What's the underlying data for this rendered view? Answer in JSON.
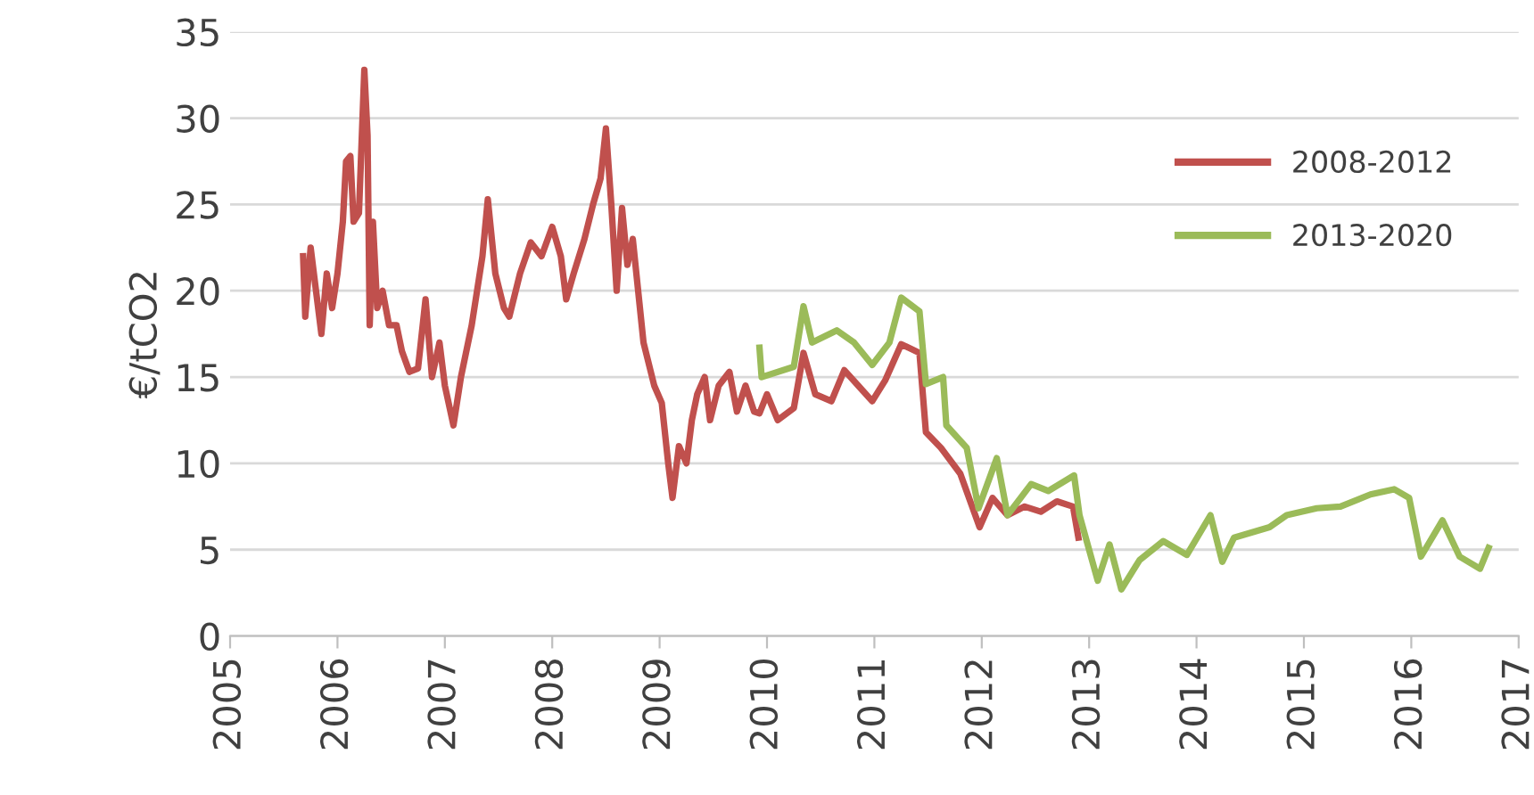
{
  "chart_data": {
    "type": "line",
    "ylabel": "€/tCO2",
    "xlim": [
      2005,
      2017
    ],
    "xticks": [
      2005,
      2006,
      2007,
      2008,
      2009,
      2010,
      2011,
      2012,
      2013,
      2014,
      2015,
      2016,
      2017
    ],
    "ylim": [
      0,
      35
    ],
    "yticks": [
      0,
      5,
      10,
      15,
      20,
      25,
      30,
      35
    ],
    "grid": "y",
    "legend": "right",
    "marker": "none",
    "line_style": "solid",
    "series": [
      {
        "name": "2008-2012",
        "color": "#c0504d",
        "x": [
          2005.68,
          2005.7,
          2005.75,
          2005.8,
          2005.85,
          2005.9,
          2005.95,
          2006.0,
          2006.05,
          2006.08,
          2006.12,
          2006.15,
          2006.2,
          2006.25,
          2006.28,
          2006.3,
          2006.33,
          2006.37,
          2006.42,
          2006.48,
          2006.55,
          2006.6,
          2006.67,
          2006.75,
          2006.82,
          2006.88,
          2006.95,
          2007.0,
          2007.08,
          2007.15,
          2007.25,
          2007.35,
          2007.4,
          2007.47,
          2007.55,
          2007.6,
          2007.7,
          2007.8,
          2007.9,
          2008.0,
          2008.08,
          2008.13,
          2008.2,
          2008.3,
          2008.38,
          2008.45,
          2008.5,
          2008.55,
          2008.6,
          2008.65,
          2008.7,
          2008.75,
          2008.85,
          2008.95,
          2009.02,
          2009.08,
          2009.12,
          2009.18,
          2009.25,
          2009.3,
          2009.35,
          2009.42,
          2009.47,
          2009.55,
          2009.65,
          2009.72,
          2009.8,
          2009.88,
          2009.93,
          2010.0,
          2010.1,
          2010.25,
          2010.34,
          2010.45,
          2010.6,
          2010.72,
          2010.85,
          2010.98,
          2011.1,
          2011.25,
          2011.42,
          2011.48,
          2011.62,
          2011.8,
          2011.98,
          2012.1,
          2012.24,
          2012.4,
          2012.55,
          2012.7,
          2012.85,
          2012.9
        ],
        "values": [
          22,
          18.5,
          22.5,
          20,
          17.5,
          21,
          19,
          21,
          24,
          27.5,
          27.8,
          24,
          24.5,
          32.8,
          29,
          18,
          24,
          19,
          20,
          18,
          18,
          16.5,
          15.3,
          15.5,
          19.5,
          15,
          17,
          14.5,
          12.2,
          15,
          18,
          22,
          25.3,
          21,
          19,
          18.5,
          21,
          22.8,
          22,
          23.7,
          22,
          19.5,
          21,
          23,
          25,
          26.5,
          29.4,
          25,
          20,
          24.8,
          21.5,
          23,
          17,
          14.5,
          13.5,
          10,
          8,
          11,
          10,
          12.5,
          14,
          15,
          12.5,
          14.5,
          15.3,
          13,
          14.5,
          13,
          12.9,
          14,
          12.5,
          13.2,
          16.4,
          14,
          13.6,
          15.4,
          14.5,
          13.6,
          14.8,
          16.9,
          16.4,
          11.8,
          10.9,
          9.4,
          6.3,
          8,
          7,
          7.5,
          7.2,
          7.8,
          7.5,
          5.7
        ]
      },
      {
        "name": "2013-2020",
        "color": "#9bbb59",
        "x": [
          2009.93,
          2009.95,
          2010.25,
          2010.34,
          2010.42,
          2010.65,
          2010.81,
          2010.98,
          2011.14,
          2011.25,
          2011.42,
          2011.48,
          2011.64,
          2011.67,
          2011.86,
          2011.97,
          2012.14,
          2012.24,
          2012.46,
          2012.62,
          2012.86,
          2012.91,
          2013.08,
          2013.19,
          2013.3,
          2013.47,
          2013.69,
          2013.91,
          2014.13,
          2014.24,
          2014.35,
          2014.68,
          2014.84,
          2015.12,
          2015.34,
          2015.62,
          2015.84,
          2015.98,
          2016.09,
          2016.29,
          2016.45,
          2016.64,
          2016.72
        ],
        "values": [
          16.7,
          15,
          15.6,
          19.1,
          17,
          17.7,
          17,
          15.7,
          17,
          19.6,
          18.8,
          14.6,
          15,
          12.2,
          10.9,
          7.4,
          10.3,
          7,
          8.8,
          8.4,
          9.3,
          7,
          3.2,
          5.3,
          2.7,
          4.4,
          5.5,
          4.7,
          7,
          4.3,
          5.7,
          6.3,
          7,
          7.4,
          7.5,
          8.2,
          8.5,
          8,
          4.6,
          6.7,
          4.6,
          3.9,
          5.1
        ]
      }
    ]
  }
}
